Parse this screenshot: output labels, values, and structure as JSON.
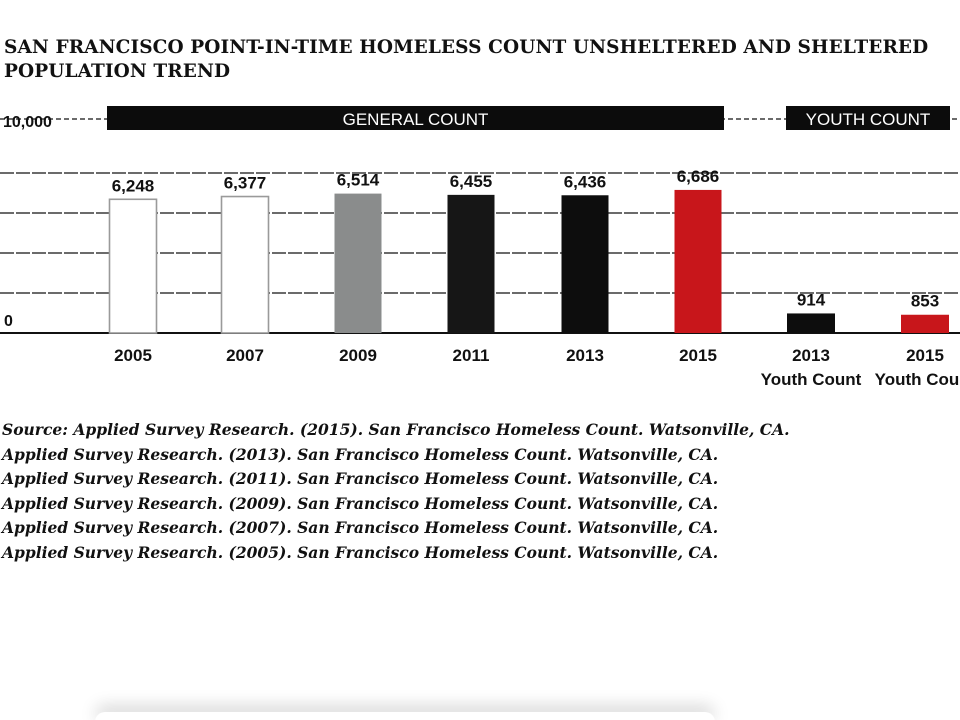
{
  "chart_data": {
    "type": "bar",
    "title_lines": [
      "SAN FRANCISCO POINT-IN-TIME HOMELESS COUNT UNSHELTERED AND SHELTERED",
      "POPULATION TREND"
    ],
    "ytick_labels": [
      "10,000",
      "0"
    ],
    "ylim": [
      0,
      10000
    ],
    "grid": true,
    "banners": [
      "GENERAL COUNT",
      "YOUTH COUNT"
    ],
    "categories": [
      {
        "year": "2005",
        "sub": ""
      },
      {
        "year": "2007",
        "sub": ""
      },
      {
        "year": "2009",
        "sub": ""
      },
      {
        "year": "2011",
        "sub": ""
      },
      {
        "year": "2013",
        "sub": ""
      },
      {
        "year": "2015",
        "sub": ""
      },
      {
        "year": "2013",
        "sub": "Youth Count"
      },
      {
        "year": "2015",
        "sub": "Youth Count"
      }
    ],
    "values": [
      6248,
      6377,
      6514,
      6455,
      6436,
      6686,
      914,
      853
    ],
    "value_labels": [
      "6,248",
      "6,377",
      "6,514",
      "6,455",
      "6,436",
      "6,686",
      "914",
      "853"
    ],
    "bar_colors": [
      "#ffffff",
      "#ffffff",
      "#8a8c8c",
      "#161616",
      "#0d0d0d",
      "#c8161b",
      "#0d0d0d",
      "#c8161b"
    ],
    "bar_outline_colors": [
      "#9a9a9a",
      "#9a9a9a",
      "#8a8c8c",
      "#161616",
      "#0d0d0d",
      "#c8161b",
      "#0d0d0d",
      "#c8161b"
    ],
    "banner_color": "#0c0c0c"
  },
  "sources": [
    "Source: Applied Survey Research. (2015). San Francisco Homeless Count. Watsonville, CA.",
    "Applied Survey Research. (2013). San Francisco Homeless Count. Watsonville, CA.",
    "Applied Survey Research. (2011). San Francisco Homeless Count. Watsonville, CA.",
    "Applied Survey Research. (2009). San Francisco Homeless Count. Watsonville, CA.",
    "Applied Survey Research. (2007). San Francisco Homeless Count. Watsonville, CA.",
    "Applied Survey Research. (2005). San Francisco Homeless Count. Watsonville, CA."
  ]
}
